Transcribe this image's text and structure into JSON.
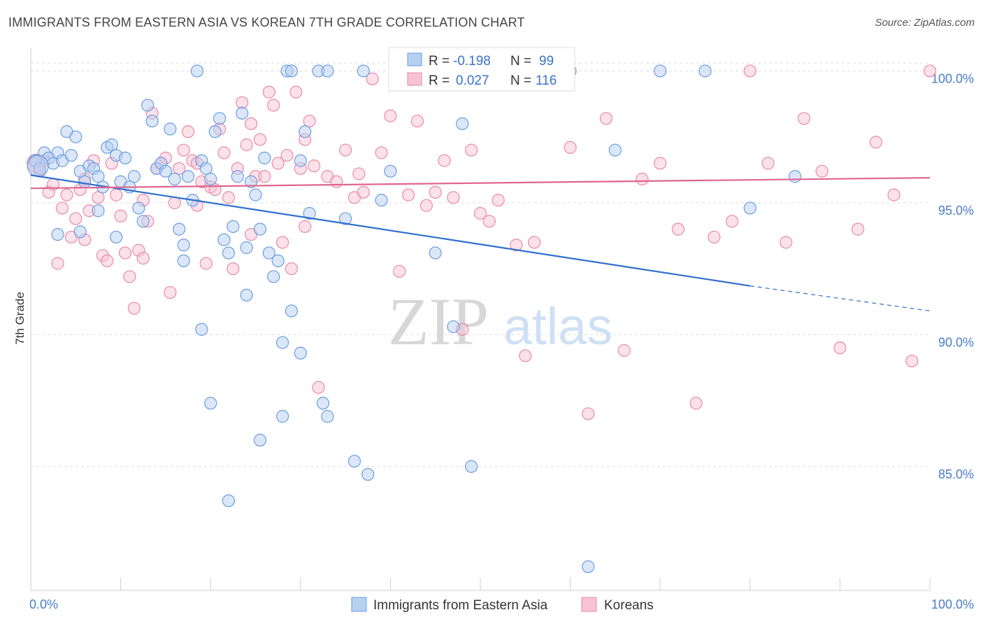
{
  "header": {
    "title": "IMMIGRANTS FROM EASTERN ASIA VS KOREAN 7TH GRADE CORRELATION CHART",
    "source": "Source: ZipAtlas.com"
  },
  "watermark": {
    "zip": "ZIP",
    "atlas": "atlas"
  },
  "colors": {
    "blue_fill": "#b7d0f2",
    "blue_stroke": "#6a9de0",
    "blue_line": "#2f6fcf",
    "pink_fill": "#f7c3d4",
    "pink_stroke": "#e98aa9",
    "pink_line": "#e0668f",
    "grid": "#dddddd"
  },
  "stats": {
    "series1": {
      "r_label": "R =",
      "r_value": "-0.198",
      "n_label": "N =",
      "n_value": "99"
    },
    "series2": {
      "r_label": "R =",
      "r_value": "0.027",
      "n_label": "N =",
      "n_value": "116"
    }
  },
  "chart_data": {
    "type": "scatter",
    "title": "IMMIGRANTS FROM EASTERN ASIA VS KOREAN 7TH GRADE CORRELATION CHART",
    "xlabel": "",
    "ylabel": "7th Grade",
    "xlim": [
      0,
      100
    ],
    "ylim": [
      80.3,
      101.1
    ],
    "x_tick_labels": [
      "0.0%",
      "100.0%"
    ],
    "y_ticks": [
      85,
      90,
      95,
      100
    ],
    "y_tick_labels": [
      "85.0%",
      "90.0%",
      "95.0%",
      "100.0%"
    ],
    "grid": true,
    "legend_position": "bottom",
    "series": [
      {
        "name": "Immigrants from Eastern Asia",
        "color": "#6a9de0",
        "trend": {
          "x": [
            0,
            80
          ],
          "y": [
            96.05,
            91.85
          ],
          "dashed_to": [
            100,
            90.9
          ]
        },
        "points": [
          [
            0.5,
            96.6
          ],
          [
            1.0,
            96.3
          ],
          [
            1.5,
            96.9
          ],
          [
            2.0,
            96.7
          ],
          [
            2.5,
            96.5
          ],
          [
            3.0,
            96.9
          ],
          [
            3.5,
            96.6
          ],
          [
            4.0,
            97.7
          ],
          [
            4.5,
            96.8
          ],
          [
            5.0,
            97.5
          ],
          [
            5.5,
            96.2
          ],
          [
            6.0,
            95.8
          ],
          [
            6.5,
            96.4
          ],
          [
            7.0,
            96.3
          ],
          [
            7.5,
            96.0
          ],
          [
            8.0,
            95.6
          ],
          [
            8.5,
            97.1
          ],
          [
            9.0,
            97.2
          ],
          [
            9.5,
            96.8
          ],
          [
            10.0,
            95.8
          ],
          [
            10.5,
            96.7
          ],
          [
            11.0,
            95.6
          ],
          [
            11.5,
            96.0
          ],
          [
            12.0,
            94.8
          ],
          [
            12.5,
            94.3
          ],
          [
            13.0,
            98.7
          ],
          [
            13.5,
            98.1
          ],
          [
            14.0,
            96.3
          ],
          [
            14.5,
            96.5
          ],
          [
            15.0,
            96.2
          ],
          [
            15.5,
            97.8
          ],
          [
            16.0,
            95.9
          ],
          [
            16.5,
            94.0
          ],
          [
            17.0,
            93.4
          ],
          [
            17.5,
            96.0
          ],
          [
            18.0,
            95.1
          ],
          [
            18.5,
            100.0
          ],
          [
            19.0,
            96.6
          ],
          [
            19.5,
            96.3
          ],
          [
            20.0,
            95.9
          ],
          [
            20.5,
            97.7
          ],
          [
            21.0,
            98.2
          ],
          [
            21.5,
            93.6
          ],
          [
            22.0,
            93.1
          ],
          [
            22.5,
            94.1
          ],
          [
            23.0,
            96.0
          ],
          [
            23.5,
            98.4
          ],
          [
            24.0,
            93.3
          ],
          [
            24.5,
            95.8
          ],
          [
            25.0,
            95.3
          ],
          [
            25.5,
            94.0
          ],
          [
            26.0,
            96.7
          ],
          [
            26.5,
            93.1
          ],
          [
            27.0,
            92.2
          ],
          [
            27.5,
            92.8
          ],
          [
            28.0,
            89.7
          ],
          [
            28.5,
            100.0
          ],
          [
            29.0,
            100.0
          ],
          [
            30.0,
            96.6
          ],
          [
            30.5,
            97.7
          ],
          [
            31.0,
            94.6
          ],
          [
            32.0,
            100.0
          ],
          [
            33.0,
            100.0
          ],
          [
            35.0,
            94.4
          ],
          [
            37.0,
            100.0
          ],
          [
            40.0,
            96.2
          ],
          [
            42.0,
            100.0
          ],
          [
            45.0,
            93.1
          ],
          [
            47.0,
            90.3
          ],
          [
            49.0,
            85.0
          ],
          [
            50.0,
            100.0
          ],
          [
            52.0,
            100.0
          ],
          [
            55.0,
            100.0
          ],
          [
            60.0,
            100.0
          ],
          [
            62.0,
            81.2
          ],
          [
            65.0,
            97.0
          ],
          [
            70.0,
            100.0
          ],
          [
            75.0,
            100.0
          ],
          [
            80.0,
            94.8
          ],
          [
            85.0,
            96.0
          ],
          [
            3.0,
            93.8
          ],
          [
            5.5,
            93.9
          ],
          [
            7.5,
            94.7
          ],
          [
            9.5,
            93.7
          ],
          [
            17.0,
            92.8
          ],
          [
            19.0,
            90.2
          ],
          [
            20.0,
            87.4
          ],
          [
            22.0,
            83.7
          ],
          [
            24.0,
            91.5
          ],
          [
            25.5,
            86.0
          ],
          [
            28.0,
            86.9
          ],
          [
            29.0,
            90.9
          ],
          [
            30.0,
            89.3
          ],
          [
            32.5,
            87.4
          ],
          [
            33.0,
            86.9
          ],
          [
            36.0,
            85.2
          ],
          [
            37.5,
            84.7
          ],
          [
            39.0,
            95.1
          ],
          [
            48.0,
            98.0
          ]
        ]
      },
      {
        "name": "Koreans",
        "color": "#e98aa9",
        "trend": {
          "x": [
            0,
            100
          ],
          "y": [
            95.55,
            95.95
          ]
        },
        "points": [
          [
            0.5,
            96.5
          ],
          [
            1.0,
            96.2
          ],
          [
            1.5,
            96.6
          ],
          [
            2.0,
            95.4
          ],
          [
            2.5,
            95.7
          ],
          [
            3.0,
            92.7
          ],
          [
            3.5,
            94.8
          ],
          [
            4.0,
            95.3
          ],
          [
            4.5,
            93.7
          ],
          [
            5.0,
            94.4
          ],
          [
            5.5,
            95.5
          ],
          [
            6.0,
            93.6
          ],
          [
            6.5,
            94.7
          ],
          [
            7.0,
            96.6
          ],
          [
            7.5,
            95.2
          ],
          [
            8.0,
            93.0
          ],
          [
            8.5,
            92.8
          ],
          [
            9.0,
            96.5
          ],
          [
            9.5,
            95.3
          ],
          [
            10.0,
            94.5
          ],
          [
            10.5,
            93.1
          ],
          [
            11.0,
            92.2
          ],
          [
            11.5,
            91.0
          ],
          [
            12.0,
            93.2
          ],
          [
            12.5,
            92.9
          ],
          [
            13.0,
            94.3
          ],
          [
            13.5,
            98.4
          ],
          [
            14.0,
            96.3
          ],
          [
            14.5,
            96.5
          ],
          [
            15.0,
            96.7
          ],
          [
            15.5,
            91.6
          ],
          [
            16.0,
            95.0
          ],
          [
            16.5,
            96.3
          ],
          [
            17.0,
            97.0
          ],
          [
            17.5,
            97.7
          ],
          [
            18.0,
            96.6
          ],
          [
            18.5,
            96.5
          ],
          [
            19.0,
            95.8
          ],
          [
            19.5,
            92.7
          ],
          [
            20.0,
            95.6
          ],
          [
            20.5,
            95.5
          ],
          [
            21.0,
            97.8
          ],
          [
            21.5,
            96.9
          ],
          [
            22.0,
            95.2
          ],
          [
            22.5,
            92.5
          ],
          [
            23.0,
            96.3
          ],
          [
            23.5,
            98.8
          ],
          [
            24.0,
            97.2
          ],
          [
            24.5,
            98.0
          ],
          [
            25.0,
            96.0
          ],
          [
            25.5,
            97.4
          ],
          [
            26.0,
            96.0
          ],
          [
            26.5,
            99.2
          ],
          [
            27.0,
            98.7
          ],
          [
            27.5,
            96.5
          ],
          [
            28.0,
            93.5
          ],
          [
            28.5,
            96.8
          ],
          [
            29.0,
            92.5
          ],
          [
            29.5,
            99.2
          ],
          [
            30.0,
            96.3
          ],
          [
            30.5,
            97.4
          ],
          [
            31.0,
            98.1
          ],
          [
            31.5,
            96.4
          ],
          [
            32.0,
            88.0
          ],
          [
            33.0,
            96.0
          ],
          [
            34.0,
            95.8
          ],
          [
            35.0,
            97.0
          ],
          [
            36.0,
            95.2
          ],
          [
            37.0,
            95.4
          ],
          [
            38.0,
            99.7
          ],
          [
            39.0,
            96.9
          ],
          [
            40.0,
            98.3
          ],
          [
            41.0,
            92.4
          ],
          [
            42.0,
            95.3
          ],
          [
            43.0,
            98.1
          ],
          [
            44.0,
            94.9
          ],
          [
            45.0,
            95.4
          ],
          [
            46.0,
            96.6
          ],
          [
            47.0,
            95.2
          ],
          [
            48.0,
            90.2
          ],
          [
            49.0,
            97.0
          ],
          [
            50.0,
            94.6
          ],
          [
            51.0,
            94.3
          ],
          [
            52.0,
            95.1
          ],
          [
            53.0,
            100.0
          ],
          [
            54.0,
            93.4
          ],
          [
            55.0,
            89.2
          ],
          [
            56.0,
            93.5
          ],
          [
            57.0,
            100.0
          ],
          [
            60.0,
            97.1
          ],
          [
            62.0,
            87.0
          ],
          [
            64.0,
            98.2
          ],
          [
            66.0,
            89.4
          ],
          [
            68.0,
            95.9
          ],
          [
            70.0,
            96.5
          ],
          [
            72.0,
            94.0
          ],
          [
            74.0,
            87.4
          ],
          [
            76.0,
            93.7
          ],
          [
            78.0,
            94.3
          ],
          [
            80.0,
            100.0
          ],
          [
            82.0,
            96.5
          ],
          [
            84.0,
            93.5
          ],
          [
            86.0,
            98.2
          ],
          [
            88.0,
            96.2
          ],
          [
            90.0,
            89.5
          ],
          [
            92.0,
            94.0
          ],
          [
            94.0,
            97.3
          ],
          [
            96.0,
            95.3
          ],
          [
            98.0,
            89.0
          ],
          [
            100.0,
            100.0
          ],
          [
            6.0,
            95.9
          ],
          [
            12.5,
            95.1
          ],
          [
            18.5,
            94.9
          ],
          [
            24.5,
            93.8
          ],
          [
            30.5,
            94.1
          ],
          [
            36.5,
            96.1
          ]
        ]
      }
    ]
  },
  "legend": {
    "items": [
      {
        "label": "Immigrants from Eastern Asia"
      },
      {
        "label": "Koreans"
      }
    ]
  }
}
